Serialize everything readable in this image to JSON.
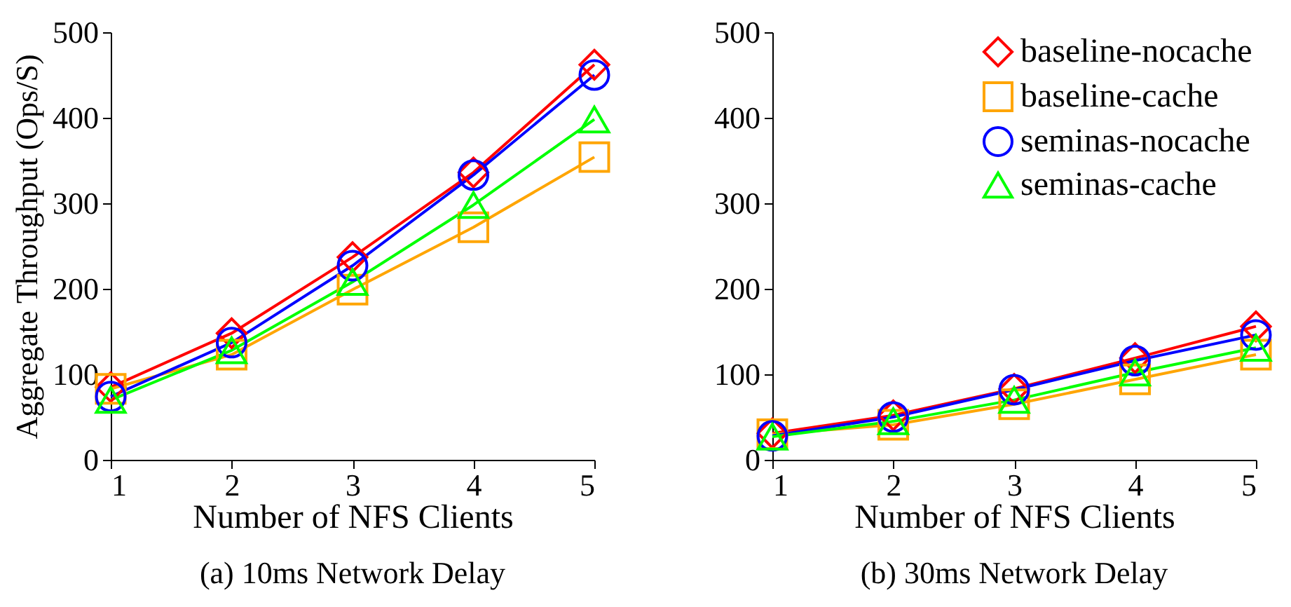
{
  "chart_data": [
    {
      "type": "line",
      "title": "(a)  10ms Network Delay",
      "xlabel": "Number of NFS Clients",
      "ylabel": "Aggregate Throughput (Ops/S)",
      "x": [
        1,
        2,
        3,
        4,
        5
      ],
      "xlim": [
        1,
        5
      ],
      "xticks": [
        1,
        2,
        3,
        4,
        5
      ],
      "ylim": [
        0,
        500
      ],
      "yticks": [
        0,
        100,
        200,
        300,
        400,
        500
      ],
      "grid": false,
      "legend": false,
      "series": [
        {
          "color": "#ff0000",
          "marker": "diamond",
          "values": [
            85,
            148,
            237,
            336,
            462
          ]
        },
        {
          "color": "#ffa500",
          "marker": "square",
          "values": [
            83,
            123,
            199,
            272,
            354
          ]
        },
        {
          "color": "#0000ff",
          "marker": "circle",
          "values": [
            74,
            137,
            227,
            333,
            450
          ]
        },
        {
          "color": "#00ff00",
          "marker": "triangle",
          "values": [
            70,
            128,
            208,
            298,
            398
          ]
        }
      ]
    },
    {
      "type": "line",
      "title": "(b)  30ms Network Delay",
      "xlabel": "Number of NFS Clients",
      "x": [
        1,
        2,
        3,
        4,
        5
      ],
      "xlim": [
        1,
        5
      ],
      "xticks": [
        1,
        2,
        3,
        4,
        5
      ],
      "ylim": [
        0,
        500
      ],
      "yticks": [
        0,
        100,
        200,
        300,
        400,
        500
      ],
      "grid": false,
      "legend": "top right",
      "series": [
        {
          "name": "baseline-nocache",
          "color": "#ff0000",
          "marker": "diamond",
          "values": [
            31,
            52,
            83,
            119,
            156
          ]
        },
        {
          "name": "baseline-cache",
          "color": "#ffa500",
          "marker": "square",
          "values": [
            30,
            41,
            65,
            94,
            123
          ]
        },
        {
          "name": "seminas-nocache",
          "color": "#0000ff",
          "marker": "circle",
          "values": [
            28,
            50,
            82,
            116,
            146
          ]
        },
        {
          "name": "seminas-cache",
          "color": "#00ff00",
          "marker": "triangle",
          "values": [
            27,
            45,
            70,
            102,
            131
          ]
        }
      ]
    }
  ]
}
